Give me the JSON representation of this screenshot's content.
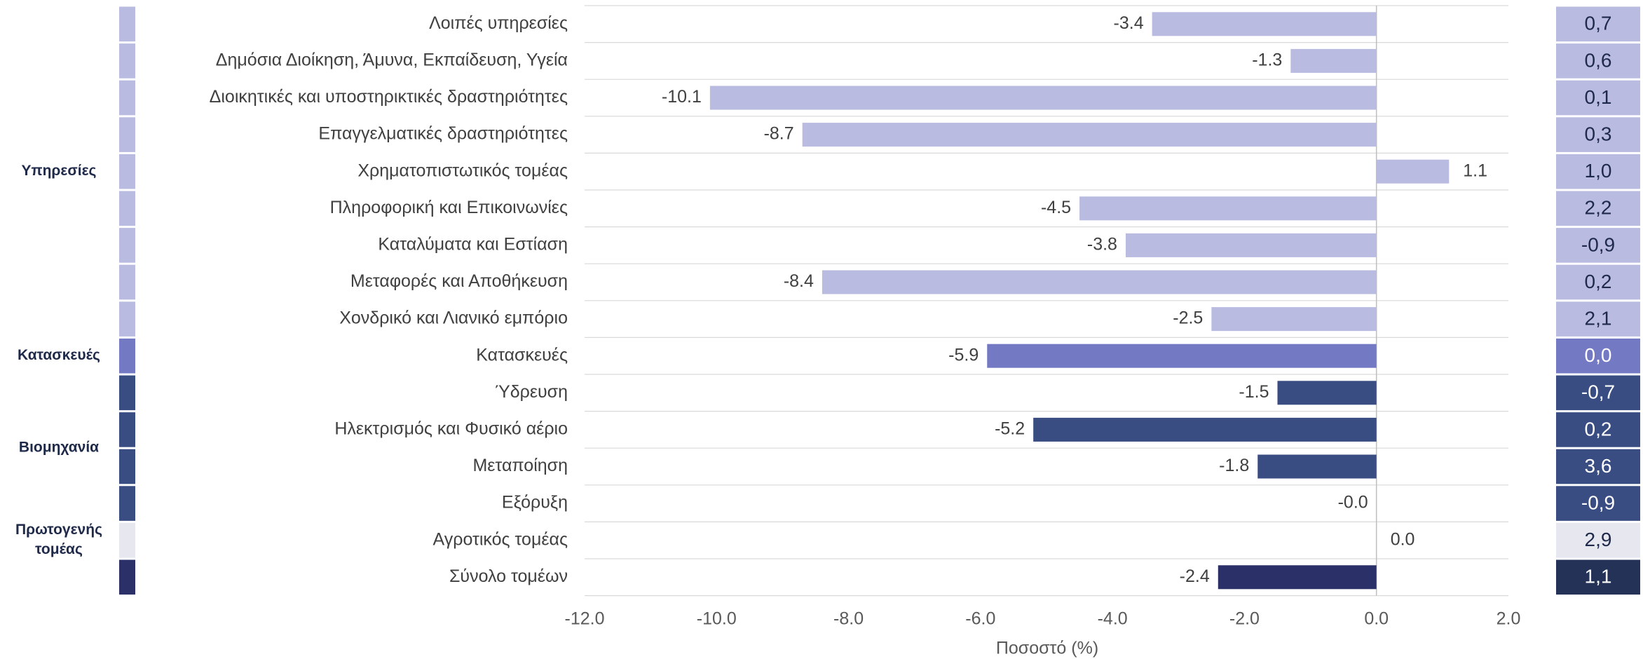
{
  "chart_data": {
    "type": "bar",
    "orientation": "horizontal",
    "xlabel": "Ποσοστό (%)",
    "xlim": [
      -12.0,
      2.0
    ],
    "xticks": [
      "-12.0",
      "-10.0",
      "-8.0",
      "-6.0",
      "-4.0",
      "-2.0",
      "0.0",
      "2.0"
    ],
    "grid": "horizontal row separators",
    "categories": [
      "Λοιπές υπηρεσίες",
      "Δημόσια Διοίκηση, Άμυνα, Εκπαίδευση, Υγεία",
      "Διοικητικές και υποστηρικτικές δραστηριότητες",
      "Επαγγελματικές δραστηριότητες",
      "Χρηματοπιστωτικός τομέας",
      "Πληροφορική και Επικοινωνίες",
      "Καταλύματα και Εστίαση",
      "Μεταφορές και Αποθήκευση",
      "Χονδρικό και Λιανικό εμπόριο",
      "Κατασκευές",
      "Ύδρευση",
      "Ηλεκτρισμός και Φυσικό αέριο",
      "Μεταποίηση",
      "Εξόρυξη",
      "Αγροτικός τομέας",
      "Σύνολο τομέων"
    ],
    "values": [
      -3.4,
      -1.3,
      -10.1,
      -8.7,
      1.1,
      -4.5,
      -3.8,
      -8.4,
      -2.5,
      -5.9,
      -1.5,
      -5.2,
      -1.8,
      -0.0,
      0.0,
      -2.4
    ],
    "value_labels": [
      "-3.4",
      "-1.3",
      "-10.1",
      "-8.7",
      "1.1",
      "-4.5",
      "-3.8",
      "-8.4",
      "-2.5",
      "-5.9",
      "-1.5",
      "-5.2",
      "-1.8",
      "-0.0",
      "0.0",
      "-2.4"
    ],
    "groups": [
      "Υπηρεσίες",
      "Υπηρεσίες",
      "Υπηρεσίες",
      "Υπηρεσίες",
      "Υπηρεσίες",
      "Υπηρεσίες",
      "Υπηρεσίες",
      "Υπηρεσίες",
      "Υπηρεσίες",
      "Κατασκευές",
      "Βιομηχανία",
      "Βιομηχανία",
      "Βιομηχανία",
      "Βιομηχανία",
      "Πρωτογενής τομέας",
      "Σύνολο"
    ],
    "group_labels": [
      {
        "text": [
          "Υπηρεσίες"
        ],
        "first": 0,
        "last": 8
      },
      {
        "text": [
          "Κατασκευές"
        ],
        "first": 9,
        "last": 9
      },
      {
        "text": [
          "Βιομηχανία"
        ],
        "first": 10,
        "last": 13
      },
      {
        "text": [
          "Πρωτογενής",
          "τομέας"
        ],
        "first": 14,
        "last": 14
      }
    ],
    "right_column_values": [
      "0,7",
      "0,6",
      "0,1",
      "0,3",
      "1,0",
      "2,2",
      "-0,9",
      "0,2",
      "2,1",
      "0,0",
      "-0,7",
      "0,2",
      "3,6",
      "-0,9",
      "2,9",
      "1,1"
    ]
  },
  "colors": {
    "Υπηρεσίες": "#b9bce0",
    "Κατασκευές": "#7479c4",
    "Βιομηχανία": "#394d82",
    "Πρωτογενής τομέας": "#e6e7ef",
    "Σύνολο": "#2b3168",
    "Σύνολο_right_box": "#243257",
    "text_dark": "#1f2a4a",
    "text_light": "#ffffff",
    "gridline": "#d9d9d9",
    "zero_line": "#bfbfbf"
  }
}
